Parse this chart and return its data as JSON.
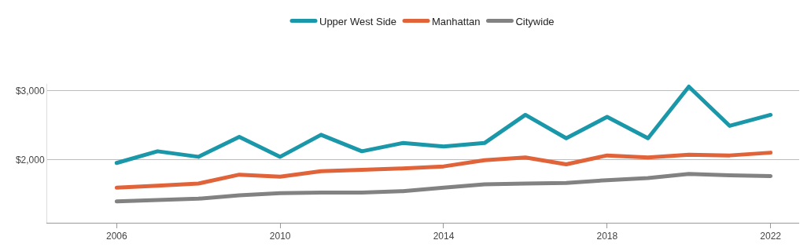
{
  "chart_data": {
    "type": "line",
    "x": [
      2006,
      2007,
      2008,
      2009,
      2010,
      2011,
      2012,
      2013,
      2014,
      2015,
      2016,
      2017,
      2018,
      2019,
      2020,
      2021,
      2022
    ],
    "series": [
      {
        "name": "Upper West Side",
        "color": "#1a97a8",
        "values": [
          1950,
          2120,
          2040,
          2330,
          2040,
          2360,
          2120,
          2240,
          2190,
          2240,
          2650,
          2310,
          2620,
          2310,
          3060,
          2490,
          2650
        ]
      },
      {
        "name": "Manhattan",
        "color": "#e0633a",
        "values": [
          1590,
          1620,
          1650,
          1780,
          1750,
          1830,
          1850,
          1870,
          1900,
          1990,
          2030,
          1930,
          2060,
          2030,
          2070,
          2060,
          2100
        ]
      },
      {
        "name": "Citywide",
        "color": "#828282",
        "values": [
          1390,
          1410,
          1430,
          1480,
          1510,
          1520,
          1520,
          1540,
          1590,
          1640,
          1650,
          1660,
          1700,
          1730,
          1790,
          1770,
          1760
        ]
      }
    ],
    "xlim": [
      2004.3,
      2022.7
    ],
    "xticks": [
      2006,
      2010,
      2014,
      2018,
      2022
    ],
    "ylim": [
      1080,
      3100
    ],
    "yticks": [
      {
        "value": 2000,
        "label": "$2,000"
      },
      {
        "value": 3000,
        "label": "$3,000"
      }
    ],
    "grid": "y",
    "legend": "top",
    "marker": "none",
    "line_style": "solid"
  }
}
